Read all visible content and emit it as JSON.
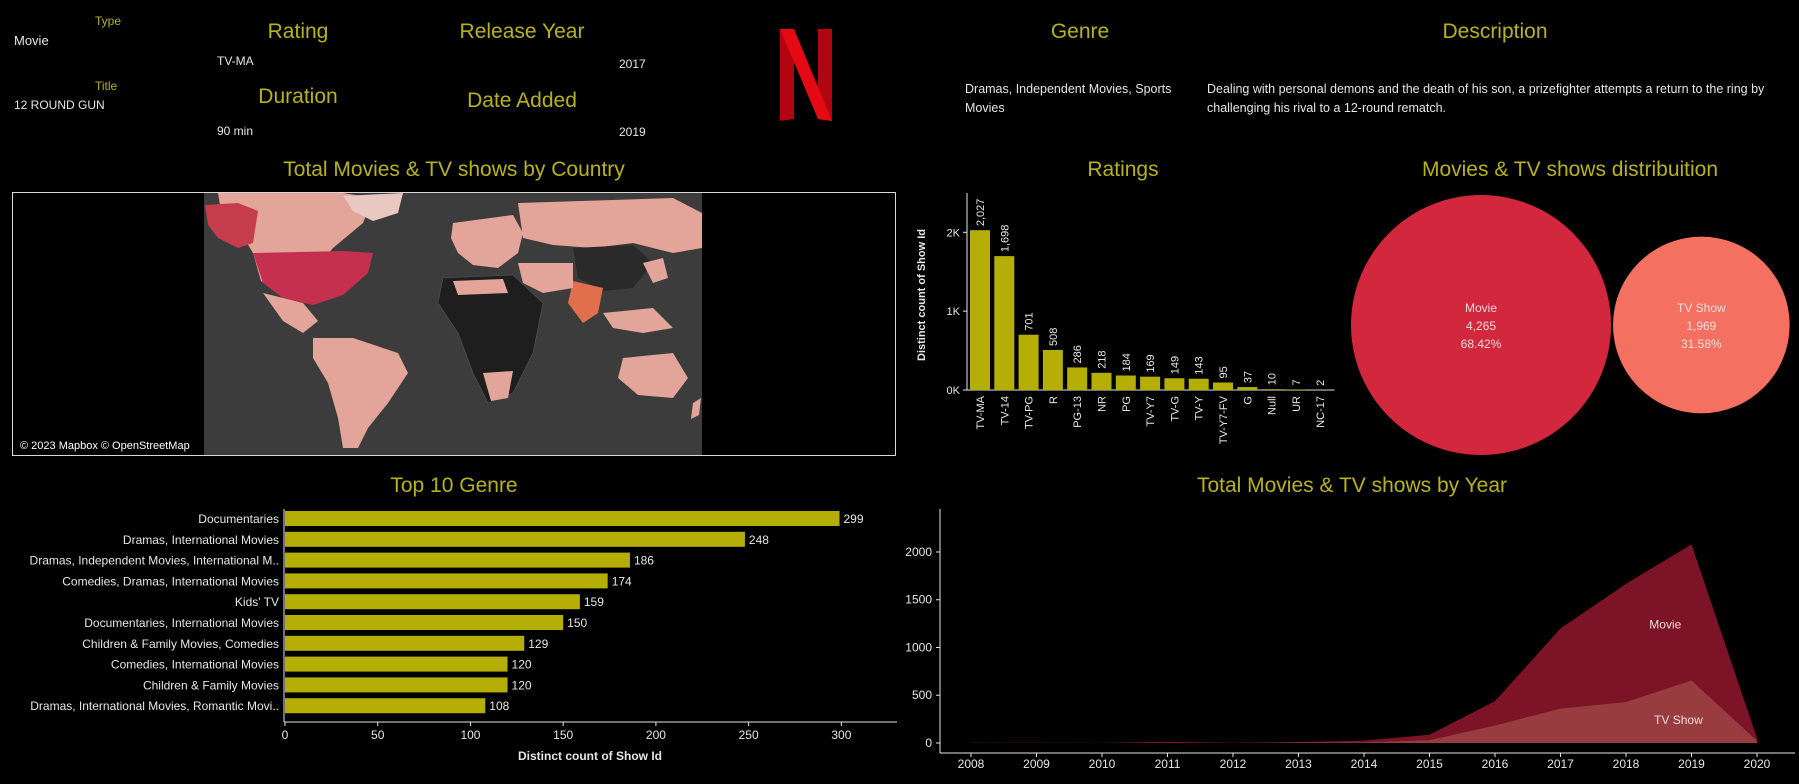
{
  "details": {
    "type_label": "Type",
    "type_value": "Movie",
    "title_label": "Title",
    "title_value": "12 ROUND GUN",
    "rating_label": "Rating",
    "rating_value": "TV-MA",
    "release_label": "Release Year",
    "release_value": "2017",
    "duration_label": "Duration",
    "duration_value": "90 min",
    "date_added_label": "Date Added",
    "date_added_value": "2019",
    "genre_label": "Genre",
    "genre_value": "Dramas, Independent Movies, Sports Movies",
    "description_label": "Description",
    "description_value": "Dealing with personal demons and the death of his son, a prizefighter attempts a return to the ring by challenging his rival to a 12-round rematch."
  },
  "logo": {
    "letter": "N",
    "color": "#e50914"
  },
  "map": {
    "title": "Total Movies & TV shows by Country",
    "attribution": "© 2023 Mapbox © OpenStreetMap"
  },
  "colors": {
    "accent": "#b8b21e",
    "bar": "#b5ae06",
    "movie": "#d3273e",
    "tvshow": "#f47060",
    "area_movie": "#7d1326",
    "area_tv": "#b4474b"
  },
  "chart_data": [
    {
      "id": "ratings",
      "type": "bar",
      "title": "Ratings",
      "ylabel": "Distinct count of Show Id",
      "categories": [
        "TV-MA",
        "TV-14",
        "TV-PG",
        "R",
        "PG-13",
        "NR",
        "PG",
        "TV-Y7",
        "TV-G",
        "TV-Y",
        "TV-Y7-FV",
        "G",
        "Null",
        "UR",
        "NC-17"
      ],
      "values": [
        2027,
        1698,
        701,
        508,
        286,
        218,
        184,
        169,
        149,
        143,
        95,
        37,
        10,
        7,
        2
      ],
      "value_labels": [
        "2,027",
        "1,698",
        "701",
        "508",
        "286",
        "218",
        "184",
        "169",
        "149",
        "143",
        "95",
        "37",
        "10",
        "7",
        "2"
      ],
      "yticks": [
        "0K",
        "1K",
        "2K"
      ],
      "ylim": [
        0,
        2600
      ]
    },
    {
      "id": "distribution",
      "type": "pie",
      "title": "Movies & TV shows distribuition",
      "categories": [
        "Movie",
        "TV Show"
      ],
      "values": [
        4265,
        1969
      ],
      "value_labels": [
        "4,265",
        "1,969"
      ],
      "percent_labels": [
        "68.42%",
        "31.58%"
      ]
    },
    {
      "id": "genre",
      "type": "bar",
      "title": "Top 10 Genre",
      "xlabel": "Distinct count of Show Id",
      "categories": [
        "Documentaries",
        "Dramas, International Movies",
        "Dramas, Independent Movies, International M..",
        "Comedies, Dramas, International Movies",
        "Kids' TV",
        "Documentaries, International Movies",
        "Children & Family Movies, Comedies",
        "Comedies, International Movies",
        "Children & Family Movies",
        "Dramas, International Movies, Romantic Movi.."
      ],
      "values": [
        299,
        248,
        186,
        174,
        159,
        150,
        129,
        120,
        120,
        108
      ],
      "xticks": [
        "0",
        "50",
        "100",
        "150",
        "200",
        "250",
        "300"
      ],
      "xlim": [
        0,
        330
      ]
    },
    {
      "id": "year",
      "type": "area",
      "title": "Total Movies & TV shows by Year",
      "x": [
        "2008",
        "2009",
        "2010",
        "2011",
        "2012",
        "2013",
        "2014",
        "2015",
        "2016",
        "2017",
        "2018",
        "2019",
        "2020"
      ],
      "series": [
        {
          "name": "Movie",
          "values": [
            1,
            2,
            1,
            13,
            3,
            6,
            19,
            56,
            253,
            839,
            1237,
            1424,
            25
          ]
        },
        {
          "name": "TV Show",
          "values": [
            1,
            0,
            0,
            0,
            0,
            5,
            6,
            30,
            185,
            361,
            429,
            656,
            25
          ]
        }
      ],
      "yticks": [
        "0",
        "500",
        "1000",
        "1500",
        "2000"
      ],
      "ylim": [
        0,
        2450
      ]
    }
  ]
}
